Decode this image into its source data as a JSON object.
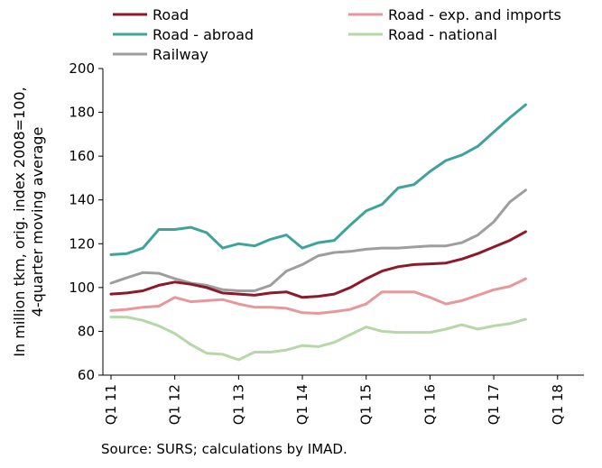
{
  "chart_data": {
    "type": "line",
    "ylabel_lines": [
      "In million tkm, orig. index 2008=100,",
      "4-quarter moving average"
    ],
    "ylim": [
      60,
      200
    ],
    "yticks": [
      60,
      80,
      100,
      120,
      140,
      160,
      180,
      200
    ],
    "x_tick_labels": [
      "Q1 11",
      "Q1 12",
      "Q1 13",
      "Q1 14",
      "Q1 15",
      "Q1 16",
      "Q1 17",
      "Q1 18"
    ],
    "x": [
      "Q1 11",
      "Q2 11",
      "Q3 11",
      "Q4 11",
      "Q1 12",
      "Q2 12",
      "Q3 12",
      "Q4 12",
      "Q1 13",
      "Q2 13",
      "Q3 13",
      "Q4 13",
      "Q1 14",
      "Q2 14",
      "Q3 14",
      "Q4 14",
      "Q1 15",
      "Q2 15",
      "Q3 15",
      "Q4 15",
      "Q1 16",
      "Q2 16",
      "Q3 16",
      "Q4 16",
      "Q1 17",
      "Q2 17",
      "Q3 17"
    ],
    "grid": false,
    "legend_position": "top",
    "series": [
      {
        "name": "Road",
        "color": "#8b1a2b",
        "values": [
          97,
          97.5,
          98.5,
          101,
          102.5,
          101.5,
          100,
          97.5,
          97,
          96.5,
          97.5,
          98,
          95.5,
          96,
          97,
          100,
          104,
          107.5,
          109.5,
          110.5,
          110.8,
          111.2,
          113,
          115.5,
          118.5,
          121.5,
          125.5
        ]
      },
      {
        "name": "Road - exp. and imports",
        "color": "#e8979a",
        "values": [
          89.5,
          90,
          91,
          91.5,
          95.5,
          93.5,
          94,
          94.5,
          92.5,
          91,
          91,
          90.5,
          88.5,
          88.2,
          89,
          90,
          92.5,
          98,
          98,
          98,
          95.5,
          92.5,
          94,
          96.5,
          99,
          100.5,
          104
        ]
      },
      {
        "name": "Road - abroad",
        "color": "#3fa39b",
        "values": [
          115,
          115.5,
          118,
          126.5,
          126.5,
          127.5,
          125,
          118,
          120,
          119,
          122,
          124,
          118,
          120.5,
          121.5,
          128.5,
          135,
          138,
          145.5,
          147,
          153,
          158,
          160.5,
          164.5,
          171,
          177.5,
          183.5
        ]
      },
      {
        "name": "Road - national",
        "color": "#b6d7a8",
        "values": [
          86.5,
          86.5,
          85,
          82.5,
          79,
          74,
          70,
          69.5,
          67,
          70.5,
          70.5,
          71.5,
          73.5,
          73,
          75,
          78.5,
          82,
          80,
          79.5,
          79.5,
          79.5,
          81,
          83,
          81,
          82.5,
          83.5,
          85.5
        ]
      },
      {
        "name": "Railway",
        "color": "#9e9e9e",
        "values": [
          102,
          104.5,
          106.8,
          106.5,
          104,
          102,
          101,
          99,
          98.5,
          98.5,
          101,
          107.5,
          110.5,
          114.5,
          116,
          116.5,
          117.5,
          118,
          118,
          118.5,
          119,
          119,
          120.5,
          124,
          130,
          139,
          144.5
        ]
      }
    ]
  },
  "source_text": "Source: SURS; calculations by IMAD."
}
